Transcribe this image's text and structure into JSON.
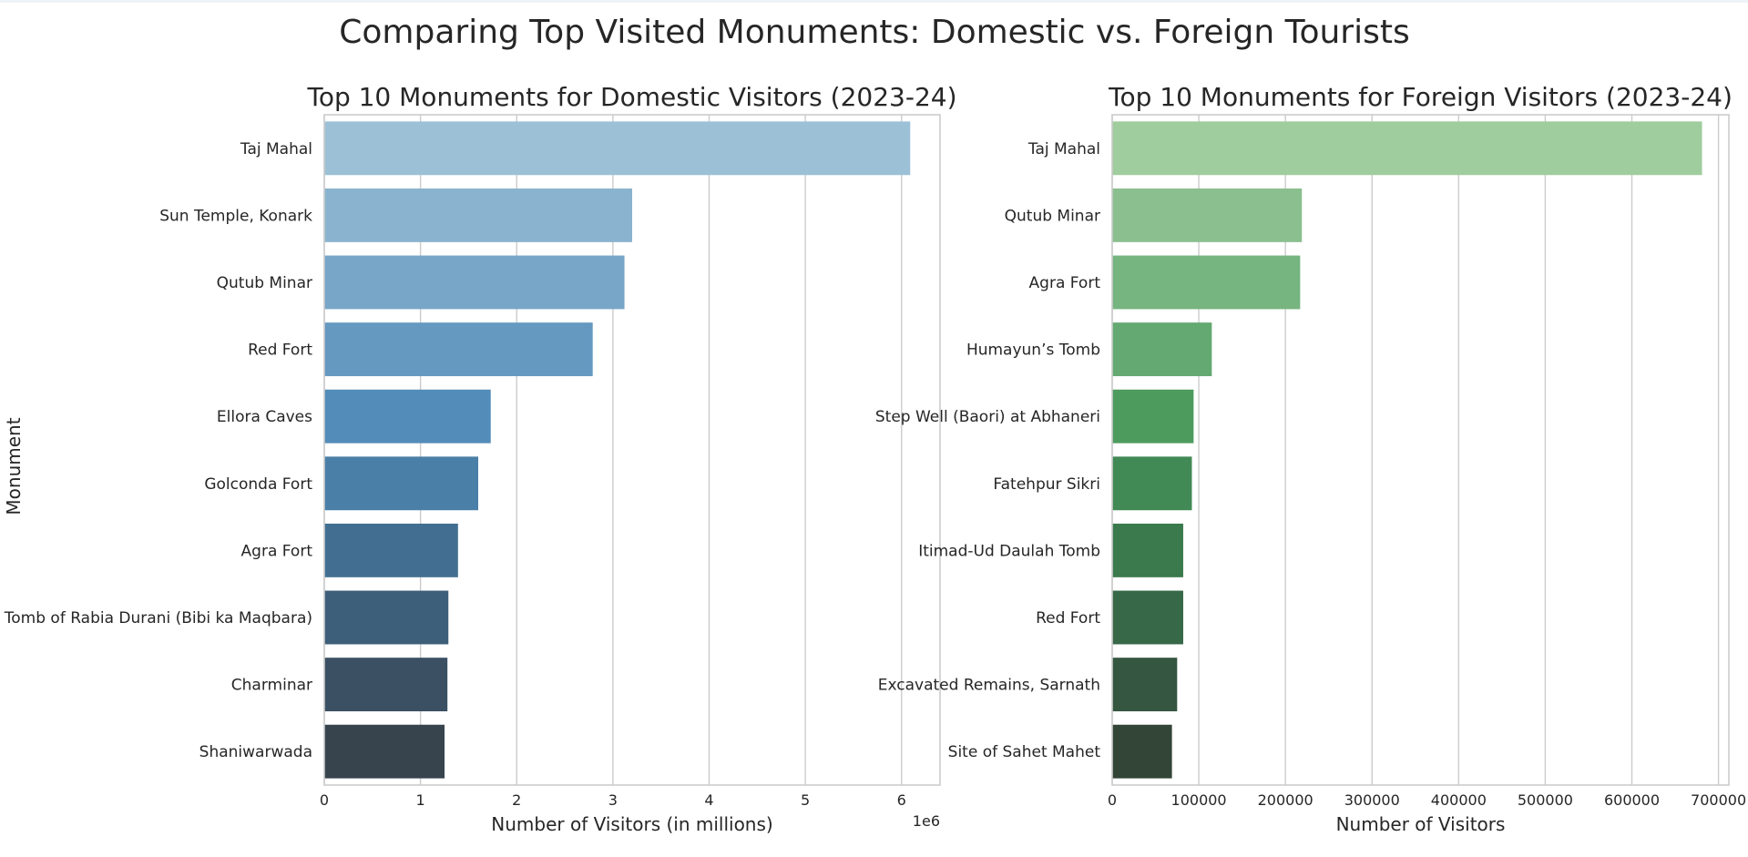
{
  "figure": {
    "title": "Comparing Top Visited Monuments: Domestic vs. Foreign Tourists",
    "shared_ylabel": "Monument"
  },
  "chart_data": [
    {
      "type": "bar",
      "orientation": "horizontal",
      "title": "Top 10 Monuments for Domestic Visitors (2023-24)",
      "xlabel": "Number of Visitors (in millions)",
      "ylabel": "Monument",
      "axis_offset_label": "1e6",
      "xlim": [
        0,
        6400000
      ],
      "xticks": [
        0,
        1000000,
        2000000,
        3000000,
        4000000,
        5000000,
        6000000
      ],
      "xtick_labels": [
        "0",
        "1",
        "2",
        "3",
        "4",
        "5",
        "6"
      ],
      "grid": true,
      "palette": "blues_d",
      "colors": [
        "#9cc1d6",
        "#8ab3cf",
        "#78a6c8",
        "#6699c0",
        "#538cb8",
        "#4a7fa8",
        "#426f91",
        "#3e5f7a",
        "#3b5063",
        "#37444e"
      ],
      "categories": [
        "Taj Mahal",
        "Sun Temple, Konark",
        "Qutub Minar",
        "Red Fort",
        "Ellora Caves",
        "Golconda Fort",
        "Agra Fort",
        "Tomb of Rabia Durani (Bibi ka Maqbara)",
        "Charminar",
        "Shaniwarwada"
      ],
      "values": [
        6090000,
        3200000,
        3120000,
        2790000,
        1730000,
        1600000,
        1390000,
        1290000,
        1280000,
        1250000
      ]
    },
    {
      "type": "bar",
      "orientation": "horizontal",
      "title": "Top 10 Monuments for Foreign Visitors (2023-24)",
      "xlabel": "Number of Visitors",
      "ylabel": "",
      "xlim": [
        0,
        712000
      ],
      "xticks": [
        0,
        100000,
        200000,
        300000,
        400000,
        500000,
        600000,
        700000
      ],
      "xtick_labels": [
        "0",
        "100000",
        "200000",
        "300000",
        "400000",
        "500000",
        "600000",
        "700000"
      ],
      "grid": true,
      "palette": "greens_d",
      "colors": [
        "#a0cd9d",
        "#8bbf8f",
        "#76b480",
        "#63a971",
        "#4e9b5e",
        "#418955",
        "#3a7a4d",
        "#376847",
        "#355640",
        "#324536"
      ],
      "categories": [
        "Taj Mahal",
        "Qutub Minar",
        "Agra Fort",
        "Humayun’s Tomb",
        "Step Well (Baori) at Abhaneri",
        "Fatehpur Sikri",
        "Itimad-Ud Daulah Tomb",
        "Red Fort",
        "Excavated Remains, Sarnath",
        "Site of Sahet Mahet"
      ],
      "values": [
        681000,
        219000,
        217000,
        115000,
        94000,
        92000,
        82000,
        82000,
        75000,
        69000
      ]
    }
  ]
}
